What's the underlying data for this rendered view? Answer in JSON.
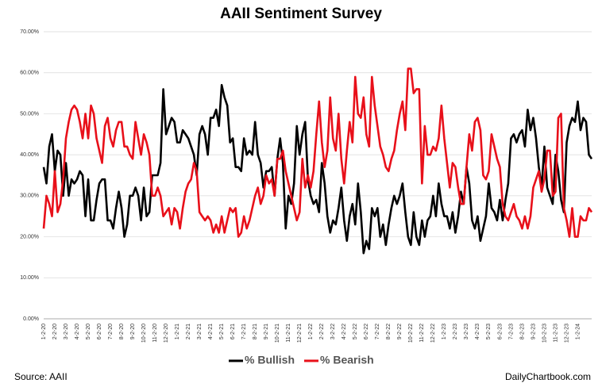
{
  "chart_data": {
    "type": "line",
    "title": "AAII Sentiment Survey",
    "source": "Source: AAII",
    "credit": "DailyChartbook.com",
    "categories": [
      "1-2-20",
      null,
      null,
      null,
      "2-2-20",
      null,
      null,
      null,
      "3-2-20",
      null,
      null,
      null,
      "4-2-20",
      null,
      null,
      null,
      "5-2-20",
      null,
      null,
      null,
      "6-2-20",
      null,
      null,
      null,
      "7-2-20",
      null,
      null,
      null,
      "8-2-20",
      null,
      null,
      null,
      "9-2-20",
      null,
      null,
      null,
      "10-2-20",
      null,
      null,
      null,
      "11-2-20",
      null,
      null,
      null,
      "12-2-20",
      null,
      null,
      null,
      "1-2-21",
      null,
      null,
      null,
      "2-2-21",
      null,
      null,
      null,
      "3-2-21",
      null,
      null,
      null,
      "4-2-21",
      null,
      null,
      null,
      "5-2-21",
      null,
      null,
      null,
      "6-2-21",
      null,
      null,
      null,
      "7-2-21",
      null,
      null,
      null,
      "8-2-21",
      null,
      null,
      null,
      "9-2-21",
      null,
      null,
      null,
      "10-2-21",
      null,
      null,
      null,
      "11-2-21",
      null,
      null,
      null,
      "12-2-21",
      null,
      null,
      null,
      "1-2-22",
      null,
      null,
      null,
      "2-2-22",
      null,
      null,
      null,
      "3-2-22",
      null,
      null,
      null,
      "4-2-22",
      null,
      null,
      null,
      "5-2-22",
      null,
      null,
      null,
      "6-2-22",
      null,
      null,
      null,
      "7-2-22",
      null,
      null,
      null,
      "8-2-22",
      null,
      null,
      null,
      "9-2-22",
      null,
      null,
      null,
      "10-2-22",
      null,
      null,
      null,
      "11-2-22",
      null,
      null,
      null,
      "12-2-22",
      null,
      null,
      null,
      "1-2-23",
      null,
      null,
      null,
      "2-2-23",
      null,
      null,
      null,
      "3-2-23",
      null,
      null,
      null,
      "4-2-23",
      null,
      null,
      null,
      "5-2-23",
      null,
      null,
      null,
      "6-2-23",
      null,
      null,
      null,
      "7-2-23",
      null,
      null,
      null,
      "8-2-23",
      null,
      null,
      null,
      "9-2-23",
      null,
      null,
      null,
      "10-2-23",
      null,
      null,
      null,
      "11-2-23",
      null,
      null,
      null,
      "12-2-23",
      null,
      null,
      null,
      "1-2-24",
      null,
      null,
      null,
      null,
      null
    ],
    "series": [
      {
        "name": "% Bullish",
        "color": "#000000",
        "values": [
          37,
          33,
          42,
          45,
          36,
          41,
          40,
          30,
          38,
          30,
          34,
          33,
          34,
          36,
          35,
          25,
          34,
          24,
          24,
          29,
          33,
          34,
          34,
          24,
          24,
          22,
          27,
          31,
          27,
          20,
          23,
          30,
          30,
          32,
          30,
          24,
          32,
          25,
          26,
          35,
          35,
          35,
          38,
          56,
          45,
          47,
          49,
          48,
          43,
          43,
          46,
          45,
          44,
          42,
          40,
          35,
          45,
          47,
          45,
          40,
          49,
          49,
          51,
          47,
          57,
          54,
          52,
          43,
          44,
          37,
          37,
          36,
          44,
          40,
          41,
          40,
          48,
          40,
          38,
          32,
          36,
          36,
          37,
          30,
          39,
          44,
          38,
          22,
          30,
          28,
          33,
          47,
          40,
          45,
          48,
          34,
          30,
          28,
          29,
          26,
          38,
          33,
          25,
          21,
          24,
          23,
          27,
          32,
          24,
          19,
          25,
          28,
          23,
          33,
          26,
          16,
          19,
          17,
          27,
          25,
          27,
          20,
          23,
          18,
          23,
          27,
          30,
          28,
          30,
          33,
          26,
          20,
          18,
          26,
          20,
          18,
          24,
          20,
          24,
          25,
          30,
          25,
          33,
          28,
          25,
          25,
          22,
          26,
          21,
          25,
          31,
          28,
          37,
          33,
          24,
          22,
          25,
          19,
          22,
          25,
          33,
          27,
          26,
          24,
          29,
          24,
          29,
          33,
          44,
          45,
          43,
          45,
          46,
          42,
          51,
          46,
          49,
          44,
          37,
          32,
          42,
          32,
          30,
          28,
          40,
          36,
          29,
          26,
          43,
          47,
          49,
          48,
          53,
          46,
          49,
          48,
          40,
          39
        ]
      },
      {
        "name": "% Bearish",
        "color": "#e8101a",
        "values": [
          22,
          30,
          28,
          25,
          36,
          26,
          28,
          34,
          44,
          48,
          51,
          52,
          51,
          48,
          44,
          50,
          44,
          52,
          50,
          44,
          41,
          38,
          47,
          49,
          44,
          42,
          46,
          48,
          48,
          42,
          42,
          40,
          39,
          48,
          44,
          40,
          45,
          43,
          40,
          30,
          30,
          32,
          30,
          25,
          26,
          27,
          23,
          27,
          26,
          22,
          27,
          31,
          33,
          34,
          38,
          36,
          26,
          25,
          24,
          25,
          24,
          21,
          23,
          21,
          25,
          21,
          24,
          27,
          26,
          27,
          20,
          21,
          25,
          22,
          24,
          27,
          30,
          32,
          28,
          30,
          35,
          33,
          34,
          30,
          39,
          39,
          41,
          36,
          33,
          30,
          27,
          24,
          26,
          39,
          32,
          35,
          32,
          36,
          45,
          53,
          43,
          37,
          41,
          54,
          44,
          41,
          50,
          39,
          33,
          41,
          48,
          43,
          59,
          50,
          49,
          54,
          45,
          42,
          59,
          52,
          47,
          42,
          40,
          37,
          36,
          39,
          41,
          46,
          50,
          53,
          46,
          61,
          61,
          55,
          56,
          56,
          33,
          47,
          40,
          40,
          42,
          41,
          44,
          52,
          44,
          38,
          32,
          38,
          37,
          32,
          28,
          28,
          37,
          45,
          41,
          48,
          49,
          46,
          35,
          34,
          36,
          45,
          42,
          39,
          37,
          28,
          25,
          24,
          26,
          28,
          25,
          24,
          22,
          25,
          22,
          25,
          32,
          34,
          36,
          31,
          34,
          41,
          41,
          30,
          31,
          49,
          50,
          27,
          24,
          20,
          27,
          20,
          20,
          25,
          24,
          24,
          27,
          26
        ]
      }
    ],
    "ylim": [
      0,
      70
    ],
    "yticks": [
      {
        "value": 0,
        "label": "0.00%"
      },
      {
        "value": 10,
        "label": "10.00%"
      },
      {
        "value": 20,
        "label": "20.00%"
      },
      {
        "value": 30,
        "label": "30.00%"
      },
      {
        "value": 40,
        "label": "40.00%"
      },
      {
        "value": 50,
        "label": "50.00%"
      },
      {
        "value": 60,
        "label": "60.00%"
      },
      {
        "value": 70,
        "label": "70.00%"
      }
    ],
    "grid": true,
    "legend": "bottom"
  }
}
